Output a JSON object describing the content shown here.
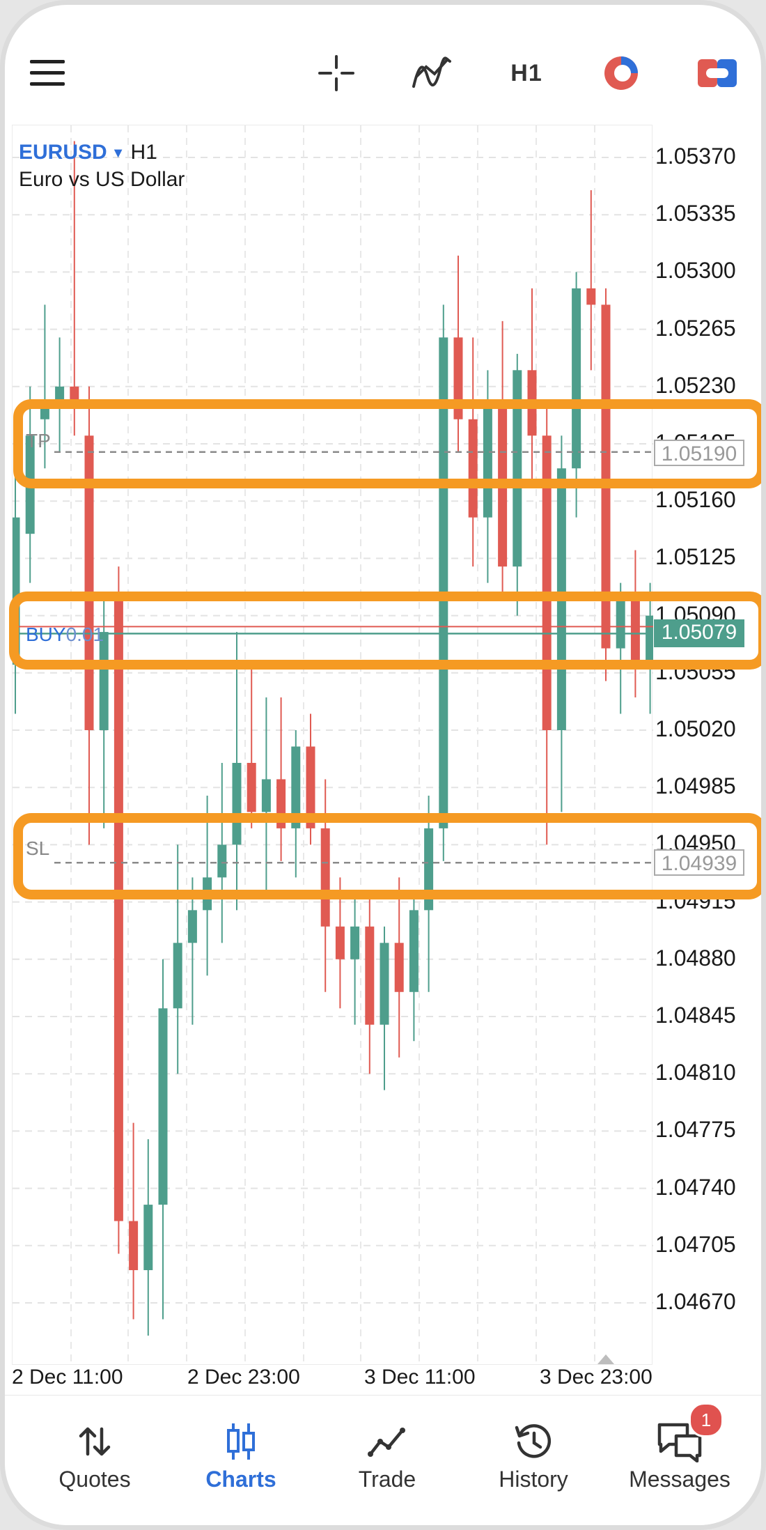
{
  "toolbar": {
    "menu_icon": "hamburger-menu-icon",
    "crosshair_icon": "crosshair-icon",
    "indicators_icon": "indicators-icon",
    "timeframe": "H1",
    "objects_icon": "objects-icon",
    "trade_icon": "trade-toggle-icon"
  },
  "chart": {
    "symbol": "EURUSD",
    "timeframe": "H1",
    "description": "Euro vs US Dollar",
    "price_labels": [
      "1.05370",
      "1.05335",
      "1.05300",
      "1.05265",
      "1.05230",
      "1.05195",
      "1.05160",
      "1.05125",
      "1.05090",
      "1.05055",
      "1.05020",
      "1.04985",
      "1.04950",
      "1.04915",
      "1.04880",
      "1.04845",
      "1.04810",
      "1.04775",
      "1.04740",
      "1.04705",
      "1.04670"
    ],
    "time_labels": [
      "2 Dec 11:00",
      "2 Dec 23:00",
      "3 Dec 11:00",
      "3 Dec 23:00"
    ],
    "tp": {
      "label": "TP",
      "price": "1.05190"
    },
    "buy": {
      "label_side": "BUY",
      "label_volume": "0.01",
      "price": "1.05079"
    },
    "sl": {
      "label": "SL",
      "price": "1.04939"
    },
    "colors": {
      "bull": "#4e9e8c",
      "bear": "#e05a52",
      "highlight": "#f59a23",
      "accent": "#2f6fd8"
    }
  },
  "chart_data": {
    "type": "candlestick",
    "symbol": "EURUSD",
    "timeframe": "H1",
    "ylim": [
      1.0464,
      1.054
    ],
    "candles": [
      {
        "o": 1.0506,
        "h": 1.0518,
        "l": 1.0503,
        "c": 1.0515
      },
      {
        "o": 1.0514,
        "h": 1.0523,
        "l": 1.0511,
        "c": 1.052
      },
      {
        "o": 1.0521,
        "h": 1.0528,
        "l": 1.0518,
        "c": 1.0522
      },
      {
        "o": 1.0522,
        "h": 1.0526,
        "l": 1.0519,
        "c": 1.0523
      },
      {
        "o": 1.0523,
        "h": 1.0538,
        "l": 1.052,
        "c": 1.0522
      },
      {
        "o": 1.052,
        "h": 1.0523,
        "l": 1.0495,
        "c": 1.0502
      },
      {
        "o": 1.0502,
        "h": 1.051,
        "l": 1.0496,
        "c": 1.0508
      },
      {
        "o": 1.051,
        "h": 1.0512,
        "l": 1.047,
        "c": 1.0472
      },
      {
        "o": 1.0472,
        "h": 1.0478,
        "l": 1.0466,
        "c": 1.0469
      },
      {
        "o": 1.0469,
        "h": 1.0477,
        "l": 1.0465,
        "c": 1.0473
      },
      {
        "o": 1.0473,
        "h": 1.0488,
        "l": 1.0466,
        "c": 1.0485
      },
      {
        "o": 1.0485,
        "h": 1.0495,
        "l": 1.0481,
        "c": 1.0489
      },
      {
        "o": 1.0489,
        "h": 1.0493,
        "l": 1.0484,
        "c": 1.0491
      },
      {
        "o": 1.0491,
        "h": 1.0498,
        "l": 1.0487,
        "c": 1.0493
      },
      {
        "o": 1.0493,
        "h": 1.05,
        "l": 1.0489,
        "c": 1.0495
      },
      {
        "o": 1.0495,
        "h": 1.0508,
        "l": 1.0491,
        "c": 1.05
      },
      {
        "o": 1.05,
        "h": 1.0506,
        "l": 1.0496,
        "c": 1.0497
      },
      {
        "o": 1.0497,
        "h": 1.0504,
        "l": 1.0492,
        "c": 1.0499
      },
      {
        "o": 1.0499,
        "h": 1.0504,
        "l": 1.0494,
        "c": 1.0496
      },
      {
        "o": 1.0496,
        "h": 1.0502,
        "l": 1.0493,
        "c": 1.0501
      },
      {
        "o": 1.0501,
        "h": 1.0503,
        "l": 1.0495,
        "c": 1.0496
      },
      {
        "o": 1.0496,
        "h": 1.0499,
        "l": 1.0486,
        "c": 1.049
      },
      {
        "o": 1.049,
        "h": 1.0493,
        "l": 1.0485,
        "c": 1.0488
      },
      {
        "o": 1.0488,
        "h": 1.0492,
        "l": 1.0484,
        "c": 1.049
      },
      {
        "o": 1.049,
        "h": 1.0492,
        "l": 1.0481,
        "c": 1.0484
      },
      {
        "o": 1.0484,
        "h": 1.049,
        "l": 1.048,
        "c": 1.0489
      },
      {
        "o": 1.0489,
        "h": 1.0493,
        "l": 1.0482,
        "c": 1.0486
      },
      {
        "o": 1.0486,
        "h": 1.0492,
        "l": 1.0483,
        "c": 1.0491
      },
      {
        "o": 1.0491,
        "h": 1.0498,
        "l": 1.0486,
        "c": 1.0496
      },
      {
        "o": 1.0496,
        "h": 1.0528,
        "l": 1.0494,
        "c": 1.0526
      },
      {
        "o": 1.0526,
        "h": 1.0531,
        "l": 1.0519,
        "c": 1.0521
      },
      {
        "o": 1.0521,
        "h": 1.0526,
        "l": 1.0512,
        "c": 1.0515
      },
      {
        "o": 1.0515,
        "h": 1.0524,
        "l": 1.0511,
        "c": 1.0522
      },
      {
        "o": 1.0522,
        "h": 1.0527,
        "l": 1.051,
        "c": 1.0512
      },
      {
        "o": 1.0512,
        "h": 1.0525,
        "l": 1.0509,
        "c": 1.0524
      },
      {
        "o": 1.0524,
        "h": 1.0529,
        "l": 1.0517,
        "c": 1.052
      },
      {
        "o": 1.052,
        "h": 1.0522,
        "l": 1.0495,
        "c": 1.0502
      },
      {
        "o": 1.0502,
        "h": 1.052,
        "l": 1.0497,
        "c": 1.0518
      },
      {
        "o": 1.0518,
        "h": 1.053,
        "l": 1.0515,
        "c": 1.0529
      },
      {
        "o": 1.0529,
        "h": 1.0535,
        "l": 1.0524,
        "c": 1.0528
      },
      {
        "o": 1.0528,
        "h": 1.0529,
        "l": 1.0505,
        "c": 1.0507
      },
      {
        "o": 1.0507,
        "h": 1.0511,
        "l": 1.0503,
        "c": 1.051
      },
      {
        "o": 1.051,
        "h": 1.0513,
        "l": 1.0504,
        "c": 1.0506
      },
      {
        "o": 1.0506,
        "h": 1.0511,
        "l": 1.0503,
        "c": 1.0509
      },
      {
        "o": 1.0509,
        "h": 1.0511,
        "l": 1.0505,
        "c": 1.0508
      },
      {
        "o": 1.0508,
        "h": 1.0511,
        "l": 1.0502,
        "c": 1.0507
      },
      {
        "o": 1.0507,
        "h": 1.0512,
        "l": 1.0504,
        "c": 1.0509
      },
      {
        "o": 1.0509,
        "h": 1.051,
        "l": 1.0498,
        "c": 1.0499
      },
      {
        "o": 1.0499,
        "h": 1.0508,
        "l": 1.0498,
        "c": 1.0507
      }
    ]
  },
  "nav": {
    "items": [
      {
        "label": "Quotes",
        "icon": "quotes-arrows-icon"
      },
      {
        "label": "Charts",
        "icon": "charts-candles-icon"
      },
      {
        "label": "Trade",
        "icon": "trade-line-icon"
      },
      {
        "label": "History",
        "icon": "history-clock-icon"
      },
      {
        "label": "Messages",
        "icon": "messages-chat-icon",
        "badge": "1"
      }
    ]
  }
}
